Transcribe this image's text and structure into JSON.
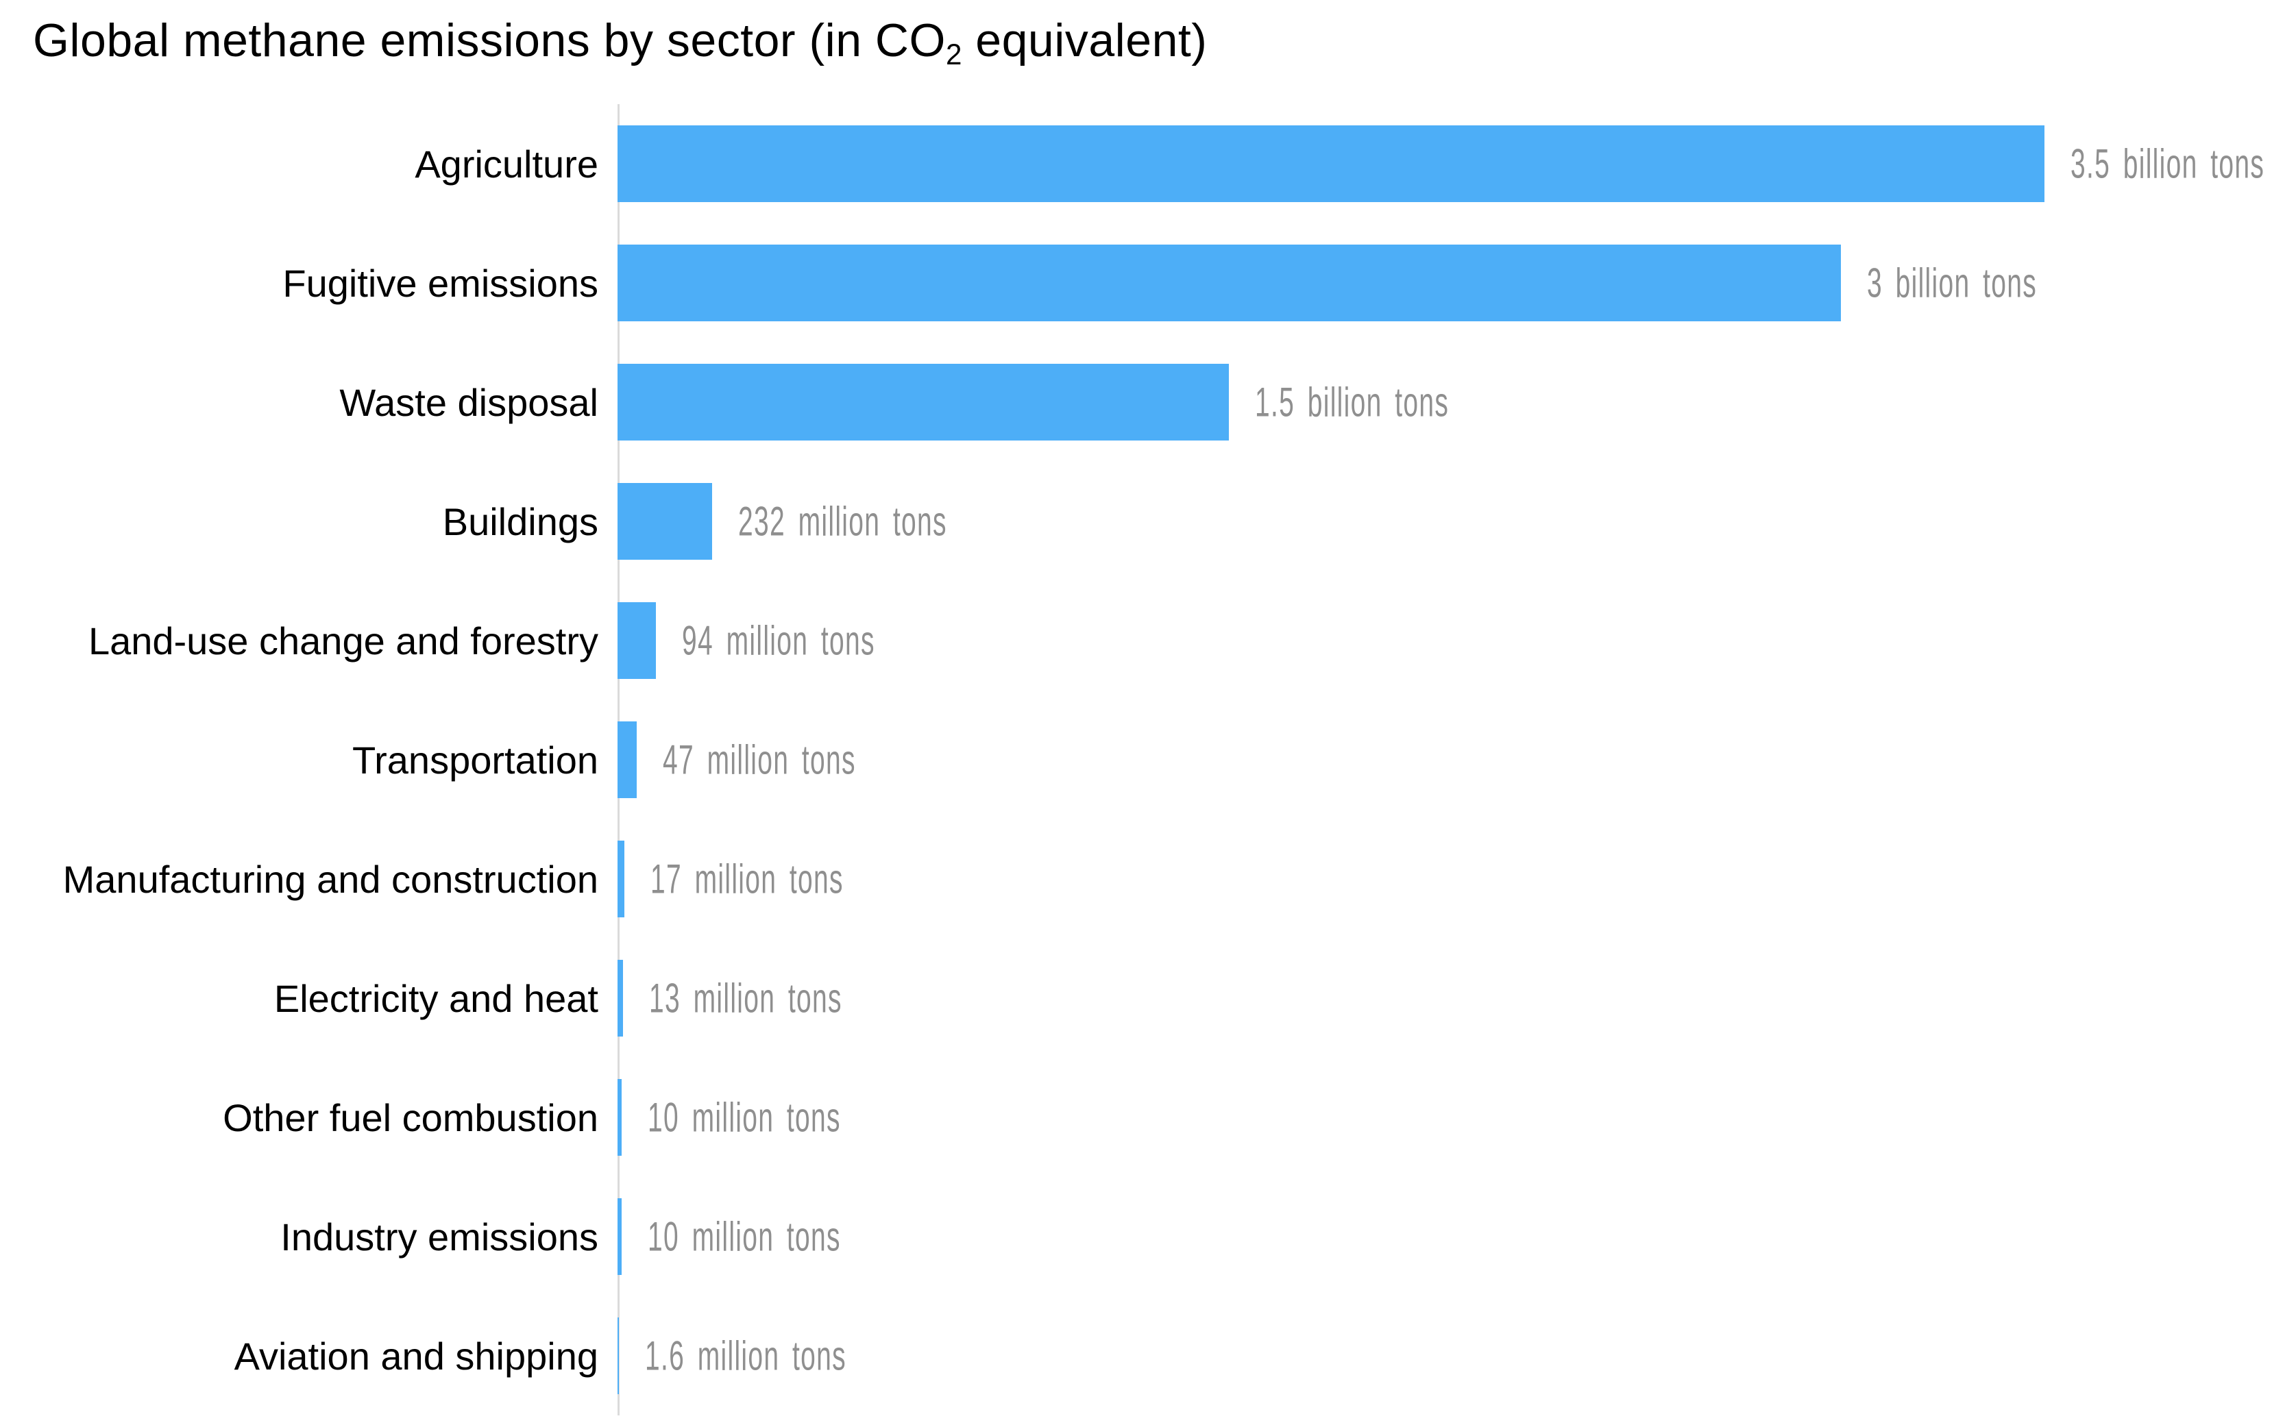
{
  "title": {
    "prefix": "Global methane emissions by sector (in CO",
    "subscript": "2",
    "suffix": " equivalent)"
  },
  "colors": {
    "bar": "#4DAEF7",
    "axis_line": "#DBDBDB",
    "category_label": "#000000",
    "value_label": "#8F8F8F",
    "background": "#FFFFFF"
  },
  "chart_data": {
    "type": "bar",
    "orientation": "horizontal",
    "title": "Global methane emissions by sector (in CO2 equivalent)",
    "unit": "tons of CO2 equivalent",
    "categories": [
      "Agriculture",
      "Fugitive emissions",
      "Waste disposal",
      "Buildings",
      "Land-use change and forestry",
      "Transportation",
      "Manufacturing and construction",
      "Electricity and heat",
      "Other fuel combustion",
      "Industry emissions",
      "Aviation and shipping"
    ],
    "values_million_tons": [
      3500,
      3000,
      1500,
      232,
      94,
      47,
      17,
      13,
      10,
      10,
      1.6
    ],
    "value_labels": [
      "3.5 billion tons",
      "3 billion tons",
      "1.5 billion tons",
      "232 million tons",
      "94 million tons",
      "47 million tons",
      "17 million tons",
      "13 million tons",
      "10 million tons",
      "10 million tons",
      "1.6 million tons"
    ],
    "xlim_million_tons": [
      0,
      3500
    ],
    "grid": false,
    "legend": false,
    "value_label_position": "right-of-bar",
    "category_label_position": "left-of-axis"
  }
}
